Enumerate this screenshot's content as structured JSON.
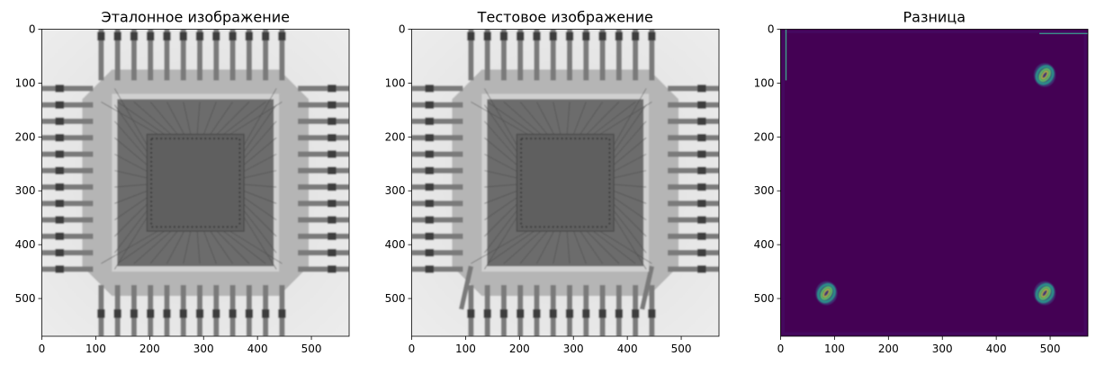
{
  "figure": {
    "panels": [
      {
        "title": "Эталонное изображение"
      },
      {
        "title": "Тестовое изображение"
      },
      {
        "title": "Разница"
      }
    ]
  },
  "chart_data": [
    {
      "type": "heatmap",
      "title": "Эталонное изображение",
      "colormap": "gray",
      "xlim": [
        0,
        570
      ],
      "ylim": [
        570,
        0
      ],
      "xticks": [
        0,
        100,
        200,
        300,
        400,
        500
      ],
      "yticks": [
        0,
        100,
        200,
        300,
        400,
        500
      ],
      "subject": "x-ray image of a chip package with 4 x 12 leads and bond wires"
    },
    {
      "type": "heatmap",
      "title": "Тестовое изображение",
      "colormap": "gray",
      "xlim": [
        0,
        570
      ],
      "ylim": [
        570,
        0
      ],
      "xticks": [
        0,
        100,
        200,
        300,
        400,
        500
      ],
      "yticks": [
        0,
        100,
        200,
        300,
        400,
        500
      ],
      "subject": "x-ray image of the same chip package, corner leads bent"
    },
    {
      "type": "heatmap",
      "title": "Разница",
      "colormap": "viridis",
      "xlim": [
        0,
        570
      ],
      "ylim": [
        570,
        0
      ],
      "xticks": [
        0,
        100,
        200,
        300,
        400,
        500
      ],
      "yticks": [
        0,
        100,
        200,
        300,
        400,
        500
      ],
      "hotspots": [
        {
          "x": 490,
          "y": 85
        },
        {
          "x": 85,
          "y": 490
        },
        {
          "x": 490,
          "y": 490
        }
      ],
      "edge_lines": [
        {
          "orientation": "vertical",
          "x": 10,
          "y_from": 0,
          "y_to": 95
        },
        {
          "orientation": "horizontal",
          "y": 8,
          "x_from": 480,
          "x_to": 570
        }
      ]
    }
  ]
}
